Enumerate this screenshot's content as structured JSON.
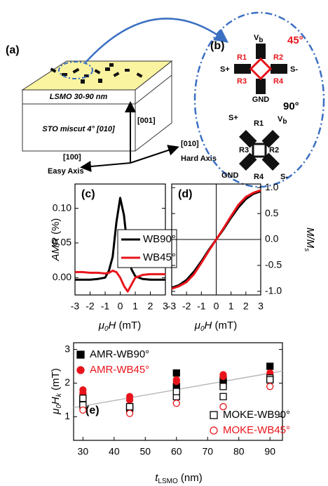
{
  "diagram": {
    "panel_a": "(a)",
    "panel_b": "(b)",
    "layer_top": "LSMO 30-90 nm",
    "layer_sub": "STO miscut 4° [010]",
    "dir_001": "[001]",
    "dir_010": "[010]",
    "hard": "Hard Axis",
    "dir_100": "[100]",
    "easy": "Easy Axis",
    "p45": {
      "angle": "45°",
      "v": "V",
      "v_sub": "b",
      "r1": "R1",
      "r2": "R2",
      "r3": "R3",
      "r4": "R4",
      "sp": "S+",
      "sm": "S-",
      "gnd": "GND"
    },
    "p90": {
      "angle": "90°",
      "v": "V",
      "v_sub": "b",
      "r1": "R1",
      "r2": "R2",
      "r3": "R3",
      "r4": "R4",
      "sp": "S+",
      "sm": "S-",
      "gnd": "GND"
    }
  },
  "chart_data": [
    {
      "type": "line",
      "panel": "(c)",
      "xlim": [
        -3,
        3
      ],
      "xticks": [
        -3,
        -2,
        -1,
        0,
        1,
        2,
        3
      ],
      "ylim": [
        -0.025,
        0.135
      ],
      "yticks": [
        {
          "value": 0,
          "label": "0.00"
        },
        {
          "value": 0.05,
          "label": "0.05"
        },
        {
          "value": 0.1,
          "label": "0.10"
        }
      ],
      "yaxis_side": "left",
      "ylabel": {
        "var": "AMR",
        "unit": " (%)"
      },
      "xlabel": {
        "sym": "μ",
        "sub": "0",
        "var": "H",
        "unit": " (mT)"
      },
      "x": [
        -3,
        -2.5,
        -2,
        -1.5,
        -1,
        -0.75,
        -0.5,
        -0.25,
        0,
        0.25,
        0.5,
        0.75,
        1,
        1.5,
        2,
        2.5,
        3
      ],
      "series": [
        {
          "name": "WB90°",
          "color": "#000000",
          "values": [
            -0.003,
            -0.003,
            -0.003,
            -0.002,
            0.0,
            0.01,
            0.03,
            0.08,
            0.115,
            0.09,
            0.04,
            0.012,
            0.002,
            -0.002,
            -0.003,
            -0.003,
            -0.003
          ]
        },
        {
          "name": "WB45°",
          "color": "#e8141b",
          "values": [
            0.008,
            0.008,
            0.007,
            0.007,
            0.006,
            0.007,
            0.01,
            0.008,
            0.0,
            -0.012,
            -0.02,
            -0.01,
            0.0,
            0.004,
            0.005,
            0.005,
            0.005
          ]
        }
      ]
    },
    {
      "type": "line",
      "panel": "(d)",
      "xlim": [
        -3,
        3
      ],
      "xticks": [
        -3,
        -2,
        -1,
        0,
        1,
        2,
        3
      ],
      "ylim": [
        -1.07,
        1.07
      ],
      "yticks": [
        {
          "value": -1,
          "label": "-1.0"
        },
        {
          "value": -0.5,
          "label": "-0.5"
        },
        {
          "value": 0,
          "label": "0.0"
        },
        {
          "value": 0.5,
          "label": "0.5"
        },
        {
          "value": 1,
          "label": "1.0"
        }
      ],
      "yaxis_side": "right",
      "zero_lines": true,
      "ylabel": {
        "var": "M/M",
        "sub": "s"
      },
      "xlabel": {
        "sym": "μ",
        "sub": "0",
        "var": "H",
        "unit": " (mT)"
      },
      "x": [
        -3,
        -2.5,
        -2,
        -1.5,
        -1,
        -0.5,
        0,
        0.5,
        1,
        1.5,
        2,
        2.5,
        3
      ],
      "series": [
        {
          "name": "WB90°",
          "color": "#000000",
          "values": [
            -0.93,
            -0.88,
            -0.78,
            -0.62,
            -0.42,
            -0.2,
            0,
            0.2,
            0.42,
            0.62,
            0.78,
            0.88,
            0.93
          ]
        },
        {
          "name": "WB45°",
          "color": "#e8141b",
          "values": [
            -0.95,
            -0.9,
            -0.82,
            -0.67,
            -0.45,
            -0.22,
            0,
            0.22,
            0.45,
            0.67,
            0.82,
            0.9,
            0.95
          ]
        }
      ]
    },
    {
      "type": "scatter",
      "panel": "(e)",
      "xlim": [
        27,
        94
      ],
      "xticks": [
        30,
        40,
        50,
        60,
        70,
        80,
        90
      ],
      "ylim": [
        0.3,
        3.2
      ],
      "yticks": [
        1,
        2,
        3
      ],
      "yaxis_side": "left",
      "ylabel": {
        "sym": "μ",
        "sub": "0",
        "var": "H",
        "sub2": "k",
        "unit": " (mT)"
      },
      "xlabel": {
        "var": "t",
        "sub": "LSMO",
        "unit": " (nm)"
      },
      "trend": {
        "color": "#bbbbbb",
        "x": [
          27,
          94
        ],
        "values": [
          1.27,
          2.36
        ]
      },
      "series": [
        {
          "name": "AMR-WB90°",
          "color": "#000000",
          "marker": "square",
          "filled": true,
          "legend": "upper left",
          "x": [
            30,
            30,
            45,
            45,
            60,
            60,
            75,
            75,
            90,
            90
          ],
          "values": [
            1.5,
            1.4,
            1.3,
            1.25,
            2.3,
            1.9,
            2.0,
            2.1,
            2.5,
            2.1
          ]
        },
        {
          "name": "AMR-WB45°",
          "color": "#e8141b",
          "marker": "circle",
          "filled": true,
          "legend": "upper left",
          "x": [
            30,
            30,
            30,
            45,
            45,
            60,
            60,
            75,
            75,
            90,
            90
          ],
          "values": [
            1.8,
            1.7,
            1.4,
            1.6,
            1.5,
            2.1,
            2.05,
            2.25,
            2.2,
            2.3,
            2.2
          ]
        },
        {
          "name": "MOKE-WB90°",
          "color": "#000000",
          "marker": "square",
          "filled": false,
          "legend": "lower right",
          "x": [
            30,
            30,
            45,
            60,
            60,
            75,
            75,
            90,
            90
          ],
          "values": [
            1.35,
            1.55,
            1.3,
            1.6,
            1.75,
            1.6,
            1.9,
            2.15,
            2.1
          ]
        },
        {
          "name": "MOKE-WB45°",
          "color": "#e8141b",
          "marker": "circle",
          "filled": false,
          "legend": "lower right",
          "x": [
            30,
            45,
            60,
            75,
            90
          ],
          "values": [
            1.2,
            1.1,
            1.4,
            1.3,
            1.9
          ]
        }
      ]
    }
  ]
}
